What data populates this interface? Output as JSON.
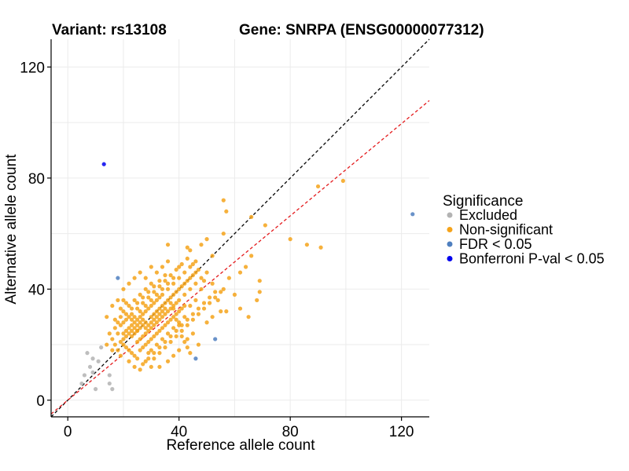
{
  "chart_data": {
    "type": "scatter",
    "title_left": "Variant: rs13108",
    "title_right": "Gene: SNRPA (ENSG00000077312)",
    "xlabel": "Reference allele count",
    "ylabel": "Alternative allele count",
    "xlim": [
      -6,
      130
    ],
    "ylim": [
      -6,
      130
    ],
    "xticks": [
      0,
      40,
      80,
      120
    ],
    "yticks": [
      0,
      40,
      80,
      120
    ],
    "reference_lines": [
      {
        "name": "identity",
        "slope": 1.0,
        "intercept": 0,
        "color": "#000000"
      },
      {
        "name": "expected-ratio",
        "slope": 0.83,
        "intercept": 0,
        "color": "#e41a1c"
      }
    ],
    "legend": {
      "title": "Significance",
      "entries": [
        {
          "label": "Excluded",
          "color": "#b3b3b3"
        },
        {
          "label": "Non-significant",
          "color": "#f5a31a"
        },
        {
          "label": "FDR < 0.05",
          "color": "#4f7fbf"
        },
        {
          "label": "Bonferroni P-val < 0.05",
          "color": "#0000ee"
        }
      ]
    },
    "series": [
      {
        "name": "Excluded",
        "color": "#b3b3b3",
        "points": [
          [
            7,
            17
          ],
          [
            8,
            12
          ],
          [
            9,
            10
          ],
          [
            10,
            4
          ],
          [
            6,
            9
          ],
          [
            5,
            6
          ],
          [
            11,
            14
          ],
          [
            15,
            9
          ],
          [
            15,
            6
          ],
          [
            12,
            19
          ],
          [
            16,
            4
          ],
          [
            9,
            15
          ]
        ]
      },
      {
        "name": "FDR < 0.05",
        "color": "#4f7fbf",
        "points": [
          [
            18,
            44
          ],
          [
            53,
            22
          ],
          [
            46,
            15
          ],
          [
            124,
            67
          ]
        ]
      },
      {
        "name": "Bonferroni P-val < 0.05",
        "color": "#0000ee",
        "points": [
          [
            13,
            85
          ]
        ]
      },
      {
        "name": "Non-significant",
        "color": "#f5a31a",
        "points": [
          [
            56,
            72
          ],
          [
            57,
            68
          ],
          [
            66,
            66
          ],
          [
            71,
            63
          ],
          [
            80,
            58
          ],
          [
            86,
            56
          ],
          [
            91,
            55
          ],
          [
            90,
            77
          ],
          [
            99,
            79
          ],
          [
            66,
            52
          ],
          [
            64,
            48
          ],
          [
            62,
            46
          ],
          [
            69,
            43
          ],
          [
            69,
            39
          ],
          [
            68,
            36
          ],
          [
            65,
            30
          ],
          [
            62,
            33
          ],
          [
            55,
            32
          ],
          [
            57,
            32
          ],
          [
            48,
            56
          ],
          [
            50,
            58
          ],
          [
            43,
            55
          ],
          [
            52,
            52
          ],
          [
            56,
            60
          ],
          [
            36,
            56
          ],
          [
            44,
            54
          ],
          [
            38,
            44
          ],
          [
            32,
            46
          ],
          [
            30,
            48
          ],
          [
            26,
            46
          ],
          [
            28,
            44
          ],
          [
            24,
            44
          ],
          [
            22,
            42
          ],
          [
            20,
            40
          ],
          [
            18,
            36
          ],
          [
            16,
            34
          ],
          [
            14,
            30
          ],
          [
            15,
            24
          ],
          [
            14,
            20
          ],
          [
            16,
            18
          ],
          [
            19,
            16
          ],
          [
            20,
            22
          ],
          [
            22,
            14
          ],
          [
            24,
            12
          ],
          [
            26,
            11
          ],
          [
            28,
            14
          ],
          [
            30,
            12
          ],
          [
            33,
            12
          ],
          [
            36,
            14
          ],
          [
            38,
            16
          ],
          [
            40,
            18
          ],
          [
            43,
            22
          ],
          [
            45,
            24
          ],
          [
            47,
            20
          ],
          [
            50,
            28
          ],
          [
            52,
            30
          ],
          [
            54,
            36
          ],
          [
            56,
            40
          ],
          [
            58,
            44
          ],
          [
            60,
            38
          ],
          [
            52,
            42
          ],
          [
            48,
            40
          ],
          [
            46,
            36
          ],
          [
            44,
            34
          ],
          [
            42,
            30
          ],
          [
            40,
            28
          ],
          [
            38,
            26
          ],
          [
            36,
            24
          ],
          [
            34,
            22
          ],
          [
            32,
            20
          ],
          [
            30,
            18
          ],
          [
            28,
            20
          ],
          [
            26,
            22
          ],
          [
            24,
            24
          ],
          [
            22,
            26
          ],
          [
            20,
            28
          ],
          [
            18,
            24
          ],
          [
            20,
            20
          ],
          [
            22,
            18
          ],
          [
            24,
            16
          ],
          [
            26,
            18
          ],
          [
            28,
            24
          ],
          [
            30,
            26
          ],
          [
            32,
            28
          ],
          [
            34,
            30
          ],
          [
            36,
            32
          ],
          [
            38,
            34
          ],
          [
            40,
            36
          ],
          [
            42,
            38
          ],
          [
            44,
            40
          ],
          [
            46,
            42
          ],
          [
            48,
            44
          ],
          [
            50,
            46
          ],
          [
            40,
            48
          ],
          [
            36,
            50
          ],
          [
            34,
            48
          ],
          [
            30,
            42
          ],
          [
            28,
            40
          ],
          [
            26,
            38
          ],
          [
            24,
            36
          ],
          [
            22,
            34
          ],
          [
            20,
            32
          ],
          [
            22,
            30
          ],
          [
            24,
            28
          ],
          [
            26,
            30
          ],
          [
            28,
            32
          ],
          [
            30,
            34
          ],
          [
            32,
            36
          ],
          [
            34,
            38
          ],
          [
            36,
            40
          ],
          [
            38,
            42
          ],
          [
            40,
            44
          ],
          [
            42,
            46
          ],
          [
            44,
            48
          ],
          [
            46,
            50
          ],
          [
            35,
            45
          ],
          [
            33,
            41
          ],
          [
            31,
            39
          ],
          [
            29,
            37
          ],
          [
            27,
            35
          ],
          [
            25,
            33
          ],
          [
            23,
            31
          ],
          [
            21,
            29
          ],
          [
            19,
            27
          ],
          [
            21,
            25
          ],
          [
            23,
            23
          ],
          [
            25,
            21
          ],
          [
            27,
            19
          ],
          [
            29,
            17
          ],
          [
            31,
            15
          ],
          [
            33,
            17
          ],
          [
            35,
            19
          ],
          [
            37,
            21
          ],
          [
            39,
            23
          ],
          [
            41,
            25
          ],
          [
            43,
            27
          ],
          [
            45,
            29
          ],
          [
            47,
            31
          ],
          [
            49,
            33
          ],
          [
            51,
            35
          ],
          [
            53,
            37
          ],
          [
            55,
            39
          ],
          [
            39,
            31
          ],
          [
            37,
            29
          ],
          [
            35,
            27
          ],
          [
            33,
            25
          ],
          [
            31,
            23
          ],
          [
            29,
            21
          ],
          [
            27,
            23
          ],
          [
            25,
            25
          ],
          [
            23,
            27
          ],
          [
            25,
            29
          ],
          [
            27,
            31
          ],
          [
            29,
            33
          ],
          [
            31,
            35
          ],
          [
            33,
            37
          ],
          [
            35,
            35
          ],
          [
            37,
            37
          ],
          [
            39,
            39
          ],
          [
            41,
            41
          ],
          [
            43,
            43
          ],
          [
            45,
            45
          ],
          [
            42,
            34
          ],
          [
            40,
            32
          ],
          [
            38,
            30
          ],
          [
            36,
            28
          ],
          [
            34,
            26
          ],
          [
            32,
            24
          ],
          [
            30,
            22
          ],
          [
            28,
            26
          ],
          [
            26,
            28
          ],
          [
            24,
            30
          ],
          [
            26,
            32
          ],
          [
            28,
            34
          ],
          [
            30,
            36
          ],
          [
            32,
            38
          ],
          [
            34,
            40
          ],
          [
            36,
            42
          ],
          [
            38,
            38
          ],
          [
            40,
            40
          ],
          [
            42,
            42
          ],
          [
            44,
            44
          ],
          [
            46,
            46
          ],
          [
            41,
            33
          ],
          [
            39,
            35
          ],
          [
            37,
            33
          ],
          [
            35,
            31
          ],
          [
            33,
            29
          ],
          [
            31,
            27
          ],
          [
            29,
            25
          ],
          [
            27,
            27
          ],
          [
            25,
            27
          ],
          [
            23,
            29
          ],
          [
            21,
            31
          ],
          [
            19,
            33
          ],
          [
            17,
            29
          ],
          [
            19,
            21
          ],
          [
            21,
            19
          ],
          [
            23,
            17
          ],
          [
            25,
            15
          ],
          [
            27,
            13
          ],
          [
            29,
            15
          ],
          [
            31,
            17
          ],
          [
            33,
            19
          ],
          [
            35,
            21
          ],
          [
            37,
            23
          ],
          [
            39,
            25
          ],
          [
            41,
            27
          ],
          [
            43,
            29
          ],
          [
            45,
            31
          ],
          [
            47,
            33
          ],
          [
            49,
            35
          ],
          [
            51,
            37
          ],
          [
            53,
            39
          ],
          [
            49,
            43
          ],
          [
            47,
            47
          ],
          [
            45,
            49
          ],
          [
            43,
            51
          ],
          [
            41,
            49
          ],
          [
            39,
            47
          ],
          [
            37,
            45
          ],
          [
            35,
            43
          ],
          [
            33,
            43
          ],
          [
            31,
            41
          ],
          [
            29,
            39
          ],
          [
            27,
            37
          ],
          [
            25,
            35
          ],
          [
            23,
            33
          ],
          [
            21,
            35
          ],
          [
            20,
            36
          ],
          [
            19,
            30
          ],
          [
            18,
            28
          ],
          [
            17,
            26
          ],
          [
            16,
            22
          ],
          [
            17,
            20
          ],
          [
            18,
            18
          ],
          [
            35,
            33
          ],
          [
            36,
            36
          ],
          [
            37,
            35
          ],
          [
            38,
            33
          ],
          [
            39,
            29
          ],
          [
            40,
            27
          ],
          [
            41,
            23
          ],
          [
            42,
            21
          ],
          [
            43,
            19
          ],
          [
            44,
            17
          ],
          [
            30,
            30
          ],
          [
            31,
            31
          ],
          [
            32,
            32
          ],
          [
            33,
            33
          ],
          [
            34,
            34
          ],
          [
            31,
            29
          ],
          [
            32,
            30
          ],
          [
            33,
            31
          ],
          [
            34,
            32
          ],
          [
            30,
            28
          ],
          [
            29,
            27
          ],
          [
            28,
            28
          ],
          [
            27,
            29
          ],
          [
            26,
            26
          ],
          [
            25,
            25
          ],
          [
            24,
            26
          ],
          [
            23,
            25
          ],
          [
            22,
            24
          ],
          [
            21,
            23
          ],
          [
            20,
            24
          ]
        ]
      }
    ]
  }
}
